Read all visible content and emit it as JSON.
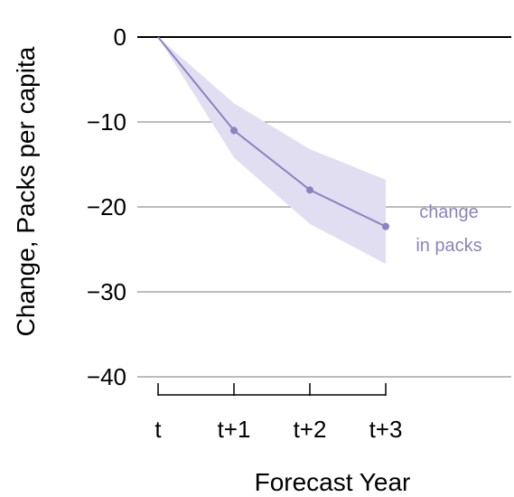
{
  "chart_data": {
    "type": "line",
    "xlabel": "Forecast Year",
    "ylabel": "Change, Packs per capita",
    "categories": [
      "t",
      "t+1",
      "t+2",
      "t+3"
    ],
    "ylim": [
      -40,
      0
    ],
    "yticks": [
      0,
      -10,
      -20,
      -30,
      -40
    ],
    "ytick_labels": [
      "0",
      "−10",
      "−20",
      "−30",
      "−40"
    ],
    "grid": true,
    "series": [
      {
        "values": [
          0,
          -11,
          -18,
          -22.3
        ],
        "lower": [
          0,
          -14.2,
          -22,
          -26.7
        ],
        "upper": [
          0,
          -7.8,
          -13.2,
          -16.8
        ],
        "color": "#8a82c4",
        "band_color": "#e0def0"
      }
    ],
    "annotation": {
      "lines": [
        "change",
        "in packs"
      ],
      "color": "#8a82c4"
    }
  }
}
